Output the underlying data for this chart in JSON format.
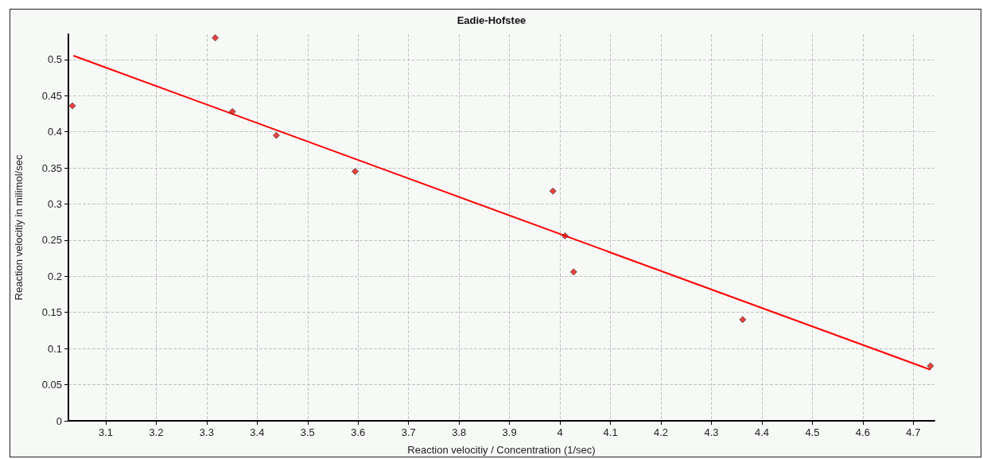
{
  "chart_data": {
    "type": "scatter",
    "title": "Eadie-Hofstee",
    "xlabel": "Reaction velocitiy / Concentration (1/sec)",
    "ylabel": "Reaction velocitiy in milimol/sec",
    "series": [
      {
        "color": "#ee1111",
        "marker": "diamond",
        "x": [
          3.034,
          3.317,
          3.351,
          3.438,
          3.594,
          3.986,
          4.01,
          4.027,
          4.362,
          4.734
        ],
        "values": [
          0.436,
          0.53,
          0.428,
          0.395,
          0.345,
          0.318,
          0.256,
          0.206,
          0.14,
          0.076
        ]
      },
      {
        "type": "line",
        "color": "#ff0000",
        "marker": "none",
        "line_style": "solid",
        "x": [
          3.037,
          4.733
        ],
        "values": [
          0.505,
          0.071
        ]
      }
    ],
    "xlim": [
      3.026,
      4.742
    ],
    "xticks": [
      3.1,
      3.2,
      3.3,
      3.4,
      3.5,
      3.6,
      3.7,
      3.8,
      3.9,
      4,
      4.1,
      4.2,
      4.3,
      4.4,
      4.5,
      4.6,
      4.7
    ],
    "ylim": [
      0,
      0.535
    ],
    "yticks": [
      0,
      0.05,
      0.1,
      0.15,
      0.2,
      0.25,
      0.3,
      0.35,
      0.4,
      0.45,
      0.5
    ],
    "grid": true
  }
}
